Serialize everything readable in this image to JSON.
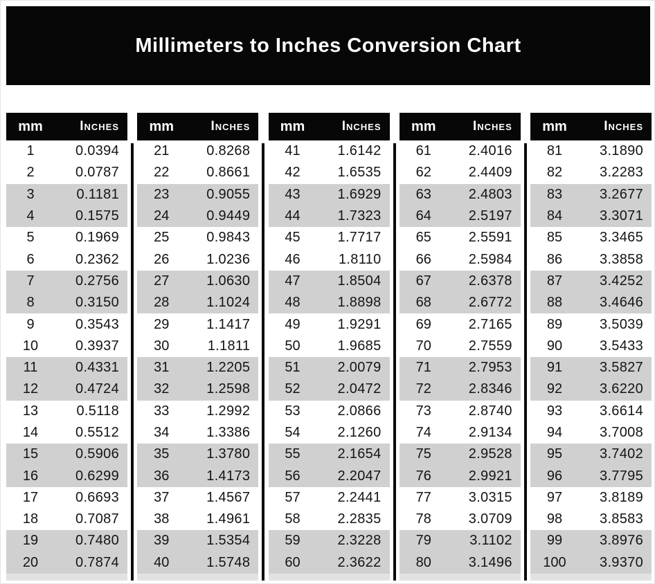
{
  "title": "Millimeters to Inches Conversion Chart",
  "table_header": {
    "mm": "mm",
    "inches": "Inches"
  },
  "colors": {
    "banner_bg": "#070707",
    "header_bg": "#070707",
    "header_text": "#ffffff",
    "stripe_gray": "#d0d0d0",
    "divider_black": "#0a0a0a",
    "footer_strip": "#e2e2e2"
  },
  "stripe_pattern": "rows 3-4, 7-8, 11-12, 15-16, 19-20 of each table are gray",
  "tables": [
    {
      "rows": [
        {
          "mm": "1",
          "in": "0.0394"
        },
        {
          "mm": "2",
          "in": "0.0787"
        },
        {
          "mm": "3",
          "in": "0.1181"
        },
        {
          "mm": "4",
          "in": "0.1575"
        },
        {
          "mm": "5",
          "in": "0.1969"
        },
        {
          "mm": "6",
          "in": "0.2362"
        },
        {
          "mm": "7",
          "in": "0.2756"
        },
        {
          "mm": "8",
          "in": "0.3150"
        },
        {
          "mm": "9",
          "in": "0.3543"
        },
        {
          "mm": "10",
          "in": "0.3937"
        },
        {
          "mm": "11",
          "in": "0.4331"
        },
        {
          "mm": "12",
          "in": "0.4724"
        },
        {
          "mm": "13",
          "in": "0.5118"
        },
        {
          "mm": "14",
          "in": "0.5512"
        },
        {
          "mm": "15",
          "in": "0.5906"
        },
        {
          "mm": "16",
          "in": "0.6299"
        },
        {
          "mm": "17",
          "in": "0.6693"
        },
        {
          "mm": "18",
          "in": "0.7087"
        },
        {
          "mm": "19",
          "in": "0.7480"
        },
        {
          "mm": "20",
          "in": "0.7874"
        }
      ]
    },
    {
      "rows": [
        {
          "mm": "21",
          "in": "0.8268"
        },
        {
          "mm": "22",
          "in": "0.8661"
        },
        {
          "mm": "23",
          "in": "0.9055"
        },
        {
          "mm": "24",
          "in": "0.9449"
        },
        {
          "mm": "25",
          "in": "0.9843"
        },
        {
          "mm": "26",
          "in": "1.0236"
        },
        {
          "mm": "27",
          "in": "1.0630"
        },
        {
          "mm": "28",
          "in": "1.1024"
        },
        {
          "mm": "29",
          "in": "1.1417"
        },
        {
          "mm": "30",
          "in": "1.1811"
        },
        {
          "mm": "31",
          "in": "1.2205"
        },
        {
          "mm": "32",
          "in": "1.2598"
        },
        {
          "mm": "33",
          "in": "1.2992"
        },
        {
          "mm": "34",
          "in": "1.3386"
        },
        {
          "mm": "35",
          "in": "1.3780"
        },
        {
          "mm": "36",
          "in": "1.4173"
        },
        {
          "mm": "37",
          "in": "1.4567"
        },
        {
          "mm": "38",
          "in": "1.4961"
        },
        {
          "mm": "39",
          "in": "1.5354"
        },
        {
          "mm": "40",
          "in": "1.5748"
        }
      ]
    },
    {
      "rows": [
        {
          "mm": "41",
          "in": "1.6142"
        },
        {
          "mm": "42",
          "in": "1.6535"
        },
        {
          "mm": "43",
          "in": "1.6929"
        },
        {
          "mm": "44",
          "in": "1.7323"
        },
        {
          "mm": "45",
          "in": "1.7717"
        },
        {
          "mm": "46",
          "in": "1.8110"
        },
        {
          "mm": "47",
          "in": "1.8504"
        },
        {
          "mm": "48",
          "in": "1.8898"
        },
        {
          "mm": "49",
          "in": "1.9291"
        },
        {
          "mm": "50",
          "in": "1.9685"
        },
        {
          "mm": "51",
          "in": "2.0079"
        },
        {
          "mm": "52",
          "in": "2.0472"
        },
        {
          "mm": "53",
          "in": "2.0866"
        },
        {
          "mm": "54",
          "in": "2.1260"
        },
        {
          "mm": "55",
          "in": "2.1654"
        },
        {
          "mm": "56",
          "in": "2.2047"
        },
        {
          "mm": "57",
          "in": "2.2441"
        },
        {
          "mm": "58",
          "in": "2.2835"
        },
        {
          "mm": "59",
          "in": "2.3228"
        },
        {
          "mm": "60",
          "in": "2.3622"
        }
      ]
    },
    {
      "rows": [
        {
          "mm": "61",
          "in": "2.4016"
        },
        {
          "mm": "62",
          "in": "2.4409"
        },
        {
          "mm": "63",
          "in": "2.4803"
        },
        {
          "mm": "64",
          "in": "2.5197"
        },
        {
          "mm": "65",
          "in": "2.5591"
        },
        {
          "mm": "66",
          "in": "2.5984"
        },
        {
          "mm": "67",
          "in": "2.6378"
        },
        {
          "mm": "68",
          "in": "2.6772"
        },
        {
          "mm": "69",
          "in": "2.7165"
        },
        {
          "mm": "70",
          "in": "2.7559"
        },
        {
          "mm": "71",
          "in": "2.7953"
        },
        {
          "mm": "72",
          "in": "2.8346"
        },
        {
          "mm": "73",
          "in": "2.8740"
        },
        {
          "mm": "74",
          "in": "2.9134"
        },
        {
          "mm": "75",
          "in": "2.9528"
        },
        {
          "mm": "76",
          "in": "2.9921"
        },
        {
          "mm": "77",
          "in": "3.0315"
        },
        {
          "mm": "78",
          "in": "3.0709"
        },
        {
          "mm": "79",
          "in": "3.1102"
        },
        {
          "mm": "80",
          "in": "3.1496"
        }
      ]
    },
    {
      "rows": [
        {
          "mm": "81",
          "in": "3.1890"
        },
        {
          "mm": "82",
          "in": "3.2283"
        },
        {
          "mm": "83",
          "in": "3.2677"
        },
        {
          "mm": "84",
          "in": "3.3071"
        },
        {
          "mm": "85",
          "in": "3.3465"
        },
        {
          "mm": "86",
          "in": "3.3858"
        },
        {
          "mm": "87",
          "in": "3.4252"
        },
        {
          "mm": "88",
          "in": "3.4646"
        },
        {
          "mm": "89",
          "in": "3.5039"
        },
        {
          "mm": "90",
          "in": "3.5433"
        },
        {
          "mm": "91",
          "in": "3.5827"
        },
        {
          "mm": "92",
          "in": "3.6220"
        },
        {
          "mm": "93",
          "in": "3.6614"
        },
        {
          "mm": "94",
          "in": "3.7008"
        },
        {
          "mm": "95",
          "in": "3.7402"
        },
        {
          "mm": "96",
          "in": "3.7795"
        },
        {
          "mm": "97",
          "in": "3.8189"
        },
        {
          "mm": "98",
          "in": "3.8583"
        },
        {
          "mm": "99",
          "in": "3.8976"
        },
        {
          "mm": "100",
          "in": "3.9370"
        }
      ]
    }
  ]
}
